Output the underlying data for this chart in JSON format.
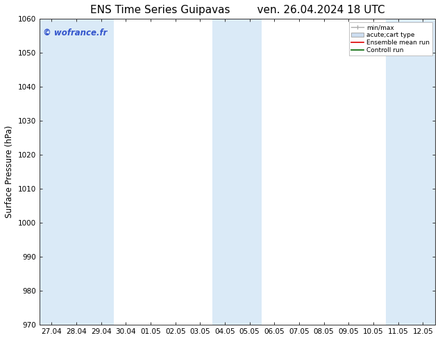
{
  "title_left": "ENS Time Series Guipavas",
  "title_right": "ven. 26.04.2024 18 UTC",
  "ylabel": "Surface Pressure (hPa)",
  "ylim": [
    970,
    1060
  ],
  "yticks": [
    970,
    980,
    990,
    1000,
    1010,
    1020,
    1030,
    1040,
    1050,
    1060
  ],
  "x_labels": [
    "27.04",
    "28.04",
    "29.04",
    "30.04",
    "01.05",
    "02.05",
    "03.05",
    "04.05",
    "05.05",
    "06.05",
    "07.05",
    "08.05",
    "09.05",
    "10.05",
    "11.05",
    "12.05"
  ],
  "x_positions": [
    0,
    1,
    2,
    3,
    4,
    5,
    6,
    7,
    8,
    9,
    10,
    11,
    12,
    13,
    14,
    15
  ],
  "shaded_columns": [
    0,
    1,
    2,
    7,
    8,
    14,
    15
  ],
  "watermark": "© wofrance.fr",
  "watermark_color": "#3355cc",
  "bg_color": "#ffffff",
  "shaded_color": "#daeaf7",
  "title_fontsize": 11,
  "tick_fontsize": 7.5,
  "ylabel_fontsize": 8.5
}
